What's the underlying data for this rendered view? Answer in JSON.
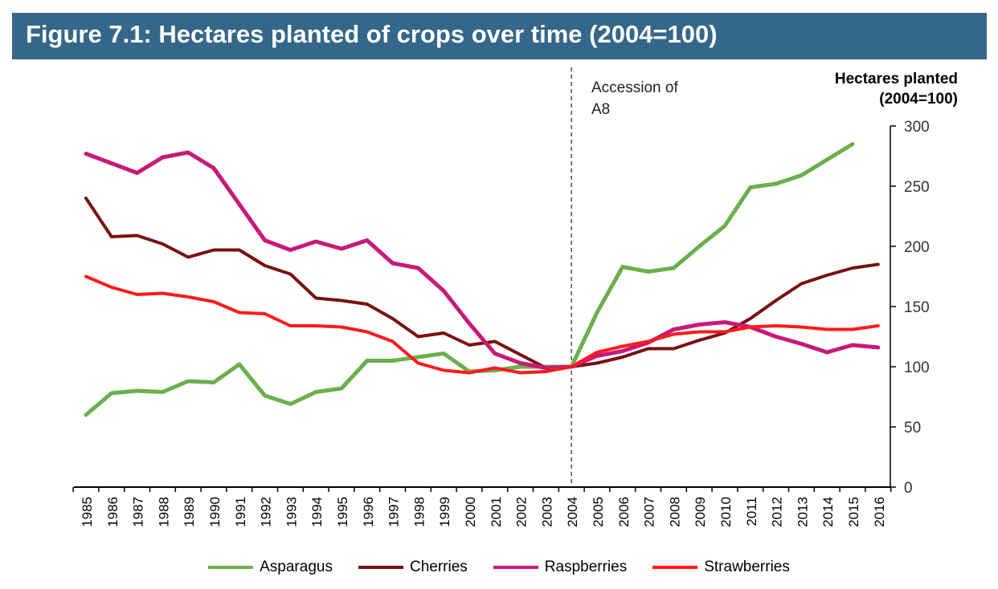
{
  "title": "Figure 7.1: Hectares planted of crops over time (2004=100)",
  "chart_data": {
    "type": "line",
    "title": "Figure 7.1: Hectares planted of crops over time (2004=100)",
    "ylabel_line1": "Hectares planted",
    "ylabel_line2": "(2004=100)",
    "ylim": [
      0,
      300
    ],
    "yticks": [
      0,
      50,
      100,
      150,
      200,
      250,
      300
    ],
    "y_axis_side": "right",
    "grid": false,
    "legend_placement": "bottom",
    "annotation": {
      "line1": "Accession of",
      "line2": "A8",
      "x": "2004",
      "style": "dashed vertical line"
    },
    "categories": [
      "1985",
      "1986",
      "1987",
      "1988",
      "1989",
      "1990",
      "1991",
      "1992",
      "1993",
      "1994",
      "1995",
      "1996",
      "1997",
      "1998",
      "1999",
      "2000",
      "2001",
      "2002",
      "2003",
      "2004",
      "2005",
      "2006",
      "2007",
      "2008",
      "2009",
      "2010",
      "2011",
      "2012",
      "2013",
      "2014",
      "2015",
      "2016"
    ],
    "series": [
      {
        "name": "Asparagus",
        "color": "#6ab04c",
        "values": [
          60,
          78,
          80,
          79,
          88,
          87,
          102,
          76,
          69,
          79,
          82,
          105,
          105,
          108,
          111,
          96,
          97,
          100,
          100,
          100,
          145,
          183,
          179,
          182,
          200,
          217,
          249,
          252,
          259,
          272,
          285,
          null
        ]
      },
      {
        "name": "Cherries",
        "color": "#7a1010",
        "values": [
          240,
          208,
          209,
          202,
          191,
          197,
          197,
          184,
          177,
          157,
          155,
          152,
          140,
          125,
          128,
          118,
          121,
          110,
          99,
          100,
          103,
          108,
          115,
          115,
          122,
          128,
          140,
          155,
          169,
          176,
          182,
          185
        ]
      },
      {
        "name": "Raspberries",
        "color": "#c8197a",
        "values": [
          277,
          269,
          261,
          274,
          278,
          265,
          235,
          205,
          197,
          204,
          198,
          205,
          186,
          182,
          163,
          136,
          111,
          103,
          99,
          100,
          109,
          113,
          120,
          131,
          135,
          137,
          133,
          125,
          119,
          112,
          118,
          116
        ]
      },
      {
        "name": "Strawberries",
        "color": "#ff1a1a",
        "values": [
          175,
          166,
          160,
          161,
          158,
          154,
          145,
          144,
          134,
          134,
          133,
          129,
          121,
          103,
          97,
          95,
          99,
          95,
          96,
          100,
          112,
          117,
          121,
          127,
          129,
          129,
          133,
          134,
          133,
          131,
          131,
          134
        ]
      }
    ]
  }
}
